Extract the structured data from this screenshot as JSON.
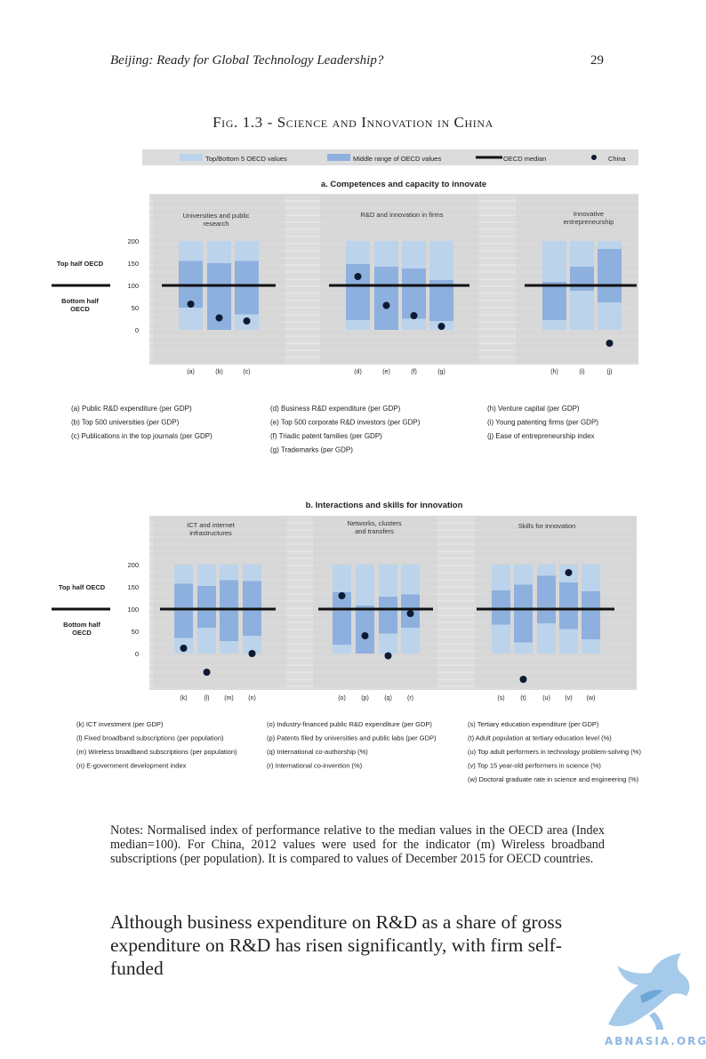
{
  "header": {
    "title": "Beijing: Ready for Global Technology Leadership?",
    "page_number": "29"
  },
  "figure": {
    "title": "Fig. 1.3 - Science and Innovation in China",
    "legend": [
      {
        "label": "Top/Bottom 5 OECD values",
        "color": "#bcd3ec"
      },
      {
        "label": "Middle range of OECD values",
        "color": "#8db0de"
      },
      {
        "label": "OECD median",
        "color": "#111111"
      },
      {
        "label": "China",
        "color": "#0d1a33"
      }
    ],
    "colors": {
      "panel": "#dcdcdc",
      "outer_bar": "#bcd3ec",
      "inner_bar": "#8db0de",
      "median": "#111111",
      "china": "#0d1a33"
    },
    "side_labels": {
      "top": "Top half OECD",
      "bottom_line1": "Bottom half",
      "bottom_line2": "OECD"
    }
  },
  "chart_data": [
    {
      "type": "bar",
      "title": "a. Competences and capacity to innovate",
      "yticks": [
        "200",
        "150",
        "100",
        "50",
        "0"
      ],
      "ylim": [
        -70,
        200
      ],
      "median": 100,
      "groups": [
        {
          "label_lines": [
            "Universities and public",
            "research"
          ]
        },
        {
          "label_lines": [
            "R&D and innovation in firms"
          ]
        },
        {
          "label_lines": [
            "Innovative",
            "entrepreneurship"
          ]
        }
      ],
      "indicators": [
        {
          "id": "(a)",
          "group": 0,
          "top": 200,
          "mid_high": 155,
          "mid_low": 50,
          "bottom": 0,
          "china": 58
        },
        {
          "id": "(b)",
          "group": 0,
          "top": 200,
          "mid_high": 150,
          "mid_low": 0,
          "bottom": 0,
          "china": 27
        },
        {
          "id": "(c)",
          "group": 0,
          "top": 200,
          "mid_high": 155,
          "mid_low": 35,
          "bottom": 0,
          "china": 20
        },
        {
          "id": "(d)",
          "group": 1,
          "top": 200,
          "mid_high": 148,
          "mid_low": 22,
          "bottom": 0,
          "china": 120
        },
        {
          "id": "(e)",
          "group": 1,
          "top": 200,
          "mid_high": 142,
          "mid_low": 0,
          "bottom": 0,
          "china": 55
        },
        {
          "id": "(f)",
          "group": 1,
          "top": 200,
          "mid_high": 138,
          "mid_low": 25,
          "bottom": 0,
          "china": 32
        },
        {
          "id": "(g)",
          "group": 1,
          "top": 200,
          "mid_high": 112,
          "mid_low": 20,
          "bottom": 0,
          "china": 8
        },
        {
          "id": "(h)",
          "group": 2,
          "top": 200,
          "mid_high": 108,
          "mid_low": 22,
          "bottom": 0,
          "china": null
        },
        {
          "id": "(i)",
          "group": 2,
          "top": 200,
          "mid_high": 142,
          "mid_low": 88,
          "bottom": 0,
          "china": null
        },
        {
          "id": "(j)",
          "group": 2,
          "top": 200,
          "mid_high": 182,
          "mid_low": 62,
          "bottom": 0,
          "china": -30
        }
      ],
      "notes": [
        [
          "(a) Public R&D expenditure (per GDP)",
          "(b) Top 500 universities (per GDP)",
          "(c) Publications in the top journals (per GDP)"
        ],
        [
          "(d) Business R&D expenditure (per GDP)",
          "(e) Top 500 corporate R&D investors (per GDP)",
          "(f) Triadic patent families (per GDP)",
          "(g) Trademarks (per GDP)"
        ],
        [
          "(h) Venture capital (per GDP)",
          "(i) Young patenting firms (per GDP)",
          "(j) Ease of entrepreneurship index"
        ]
      ]
    },
    {
      "type": "bar",
      "title": "b. Interactions and skills for innovation",
      "yticks": [
        "200",
        "150",
        "100",
        "50",
        "0"
      ],
      "ylim": [
        -70,
        200
      ],
      "median": 100,
      "groups": [
        {
          "label_lines": [
            "ICT and internet",
            "infrastructures"
          ]
        },
        {
          "label_lines": [
            "Networks, clusters",
            "and transfers"
          ]
        },
        {
          "label_lines": [
            "Skills for innovation"
          ]
        }
      ],
      "indicators": [
        {
          "id": "(k)",
          "group": 0,
          "top": 200,
          "mid_high": 157,
          "mid_low": 35,
          "bottom": 0,
          "china": 12
        },
        {
          "id": "(l)",
          "group": 0,
          "top": 200,
          "mid_high": 152,
          "mid_low": 58,
          "bottom": 0,
          "china": -42
        },
        {
          "id": "(m)",
          "group": 0,
          "top": 200,
          "mid_high": 165,
          "mid_low": 28,
          "bottom": 0,
          "china": null
        },
        {
          "id": "(n)",
          "group": 0,
          "top": 200,
          "mid_high": 163,
          "mid_low": 40,
          "bottom": 0,
          "china": 0
        },
        {
          "id": "(o)",
          "group": 1,
          "top": 200,
          "mid_high": 138,
          "mid_low": 20,
          "bottom": 0,
          "china": 130
        },
        {
          "id": "(p)",
          "group": 1,
          "top": 200,
          "mid_high": 108,
          "mid_low": 0,
          "bottom": 0,
          "china": 40
        },
        {
          "id": "(q)",
          "group": 1,
          "top": 200,
          "mid_high": 128,
          "mid_low": 45,
          "bottom": 0,
          "china": -5
        },
        {
          "id": "(r)",
          "group": 1,
          "top": 200,
          "mid_high": 133,
          "mid_low": 58,
          "bottom": 0,
          "china": 90
        },
        {
          "id": "(s)",
          "group": 2,
          "top": 200,
          "mid_high": 142,
          "mid_low": 65,
          "bottom": 0,
          "china": null
        },
        {
          "id": "(t)",
          "group": 2,
          "top": 200,
          "mid_high": 155,
          "mid_low": 25,
          "bottom": 0,
          "china": -58
        },
        {
          "id": "(u)",
          "group": 2,
          "top": 200,
          "mid_high": 175,
          "mid_low": 68,
          "bottom": 0,
          "china": null
        },
        {
          "id": "(v)",
          "group": 2,
          "top": 200,
          "mid_high": 160,
          "mid_low": 55,
          "bottom": 0,
          "china": 182
        },
        {
          "id": "(w)",
          "group": 2,
          "top": 200,
          "mid_high": 140,
          "mid_low": 32,
          "bottom": 0,
          "china": null
        }
      ],
      "notes": [
        [
          "(k) ICT investment (per GDP)",
          "(l) Fixed broadband subscriptions (per population)",
          "(m) Wireless broadband subscriptions (per population)",
          "(n) E-government development index"
        ],
        [
          "(o) Industry-financed public R&D expenditure (per GDP)",
          "(p) Patents filed by universities and public labs (per GDP)",
          "(q) International co-authorship (%)",
          "(r) International co-invention (%)"
        ],
        [
          "(s) Tertiary education expenditure (per GDP)",
          "(t) Adult population at tertiary education level (%)",
          "(u) Top adult performers in technology problem-solving (%)",
          "(v) Top 15 year-old performers in science (%)",
          "(w) Doctoral graduate rate in science and engineering (%)"
        ]
      ]
    }
  ],
  "notes_text": "Notes: Normalised index of performance relative to the median values in the OECD area (Index median=100). For China, 2012 values were used for the indicator (m) Wireless broadband subscriptions (per population). It is compared to values of December 2015 for OECD countries.",
  "body_text": "Although business expenditure on R&D as a share of gross expenditure on R&D has risen significantly, with firm self-funded",
  "watermark": {
    "text": "ABNASIA.ORG"
  }
}
